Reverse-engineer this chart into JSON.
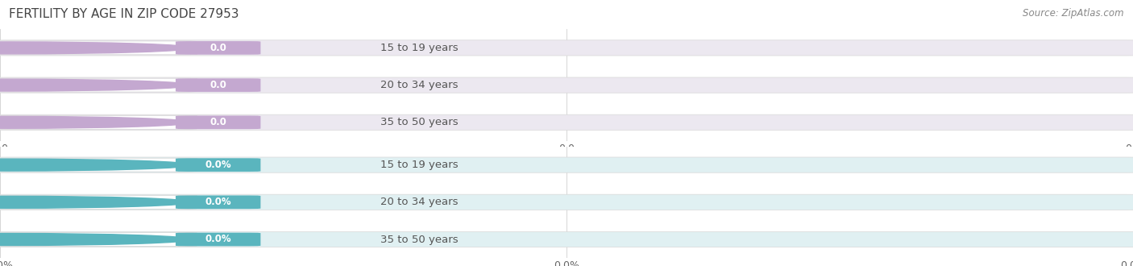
{
  "title": "FERTILITY BY AGE IN ZIP CODE 27953",
  "source": "Source: ZipAtlas.com",
  "title_color": "#444444",
  "title_fontsize": 11,
  "background_color": "#ffffff",
  "group1": {
    "labels": [
      "15 to 19 years",
      "20 to 34 years",
      "35 to 50 years"
    ],
    "values": [
      0.0,
      0.0,
      0.0
    ],
    "is_percent": false,
    "accent_color": "#c4a8d0",
    "track_color": "#ece8f0",
    "badge_color": "#c4a8d0",
    "badge_text_color": "#ffffff",
    "label_text_color": "#555555"
  },
  "group2": {
    "labels": [
      "15 to 19 years",
      "20 to 34 years",
      "35 to 50 years"
    ],
    "values": [
      0.0,
      0.0,
      0.0
    ],
    "is_percent": true,
    "accent_color": "#5ab5be",
    "track_color": "#e0f0f2",
    "badge_color": "#5ab5be",
    "badge_text_color": "#ffffff",
    "label_text_color": "#555555"
  },
  "label_fontsize": 9.5,
  "value_fontsize": 8.5,
  "tick_fontsize": 9,
  "source_fontsize": 8.5
}
